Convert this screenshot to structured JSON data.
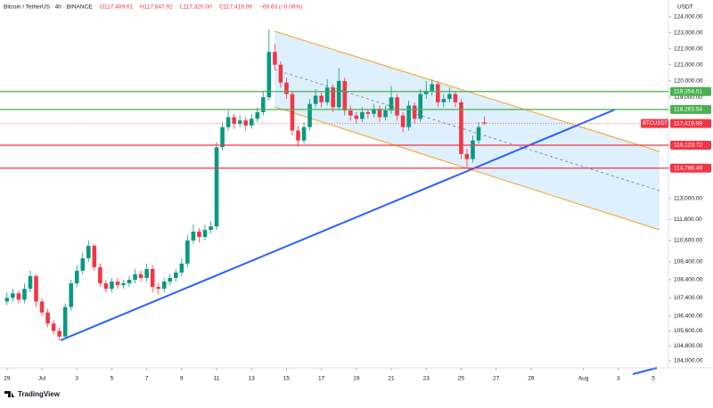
{
  "header": {
    "symbol": "Bitcoin / TetherUS · 4h · BINANCE",
    "ohlc": [
      "O117,489.61",
      "H117,847.92",
      "L117,320.00",
      "C117,419.99",
      "−69.63 (−0.06%)"
    ],
    "currency": "USDT",
    "brand": "TradingView"
  },
  "chart_data": {
    "type": "candlestick",
    "log_scale": true,
    "up_color": "#089981",
    "down_color": "#f23645",
    "xlim": [
      -1.2,
      113.6
    ],
    "ylim": [
      103620,
      124790
    ],
    "xticks": [
      {
        "value": 0,
        "label": "29"
      },
      {
        "value": 6,
        "label": "Jul"
      },
      {
        "value": 12,
        "label": "3"
      },
      {
        "value": 18,
        "label": "5"
      },
      {
        "value": 24,
        "label": "7"
      },
      {
        "value": 30,
        "label": "9"
      },
      {
        "value": 36,
        "label": "11"
      },
      {
        "value": 42,
        "label": "13"
      },
      {
        "value": 48,
        "label": "15"
      },
      {
        "value": 54,
        "label": "17"
      },
      {
        "value": 60,
        "label": "19"
      },
      {
        "value": 66,
        "label": "21"
      },
      {
        "value": 72,
        "label": "23"
      },
      {
        "value": 78,
        "label": "25"
      },
      {
        "value": 84,
        "label": "27"
      },
      {
        "value": 90,
        "label": "29"
      },
      {
        "value": 99,
        "label": "Aug"
      },
      {
        "value": 105,
        "label": "3"
      },
      {
        "value": 111,
        "label": "5"
      }
    ],
    "yticks": [
      {
        "value": 124000,
        "label": "124,000.00"
      },
      {
        "value": 123000,
        "label": "123,000.00"
      },
      {
        "value": 122000,
        "label": "122,000.00"
      },
      {
        "value": 121000,
        "label": "121,000.00"
      },
      {
        "value": 120000,
        "label": "120,000.00"
      },
      {
        "value": 119000,
        "label": "119,000.00"
      },
      {
        "value": 113000,
        "label": "113,000.00"
      },
      {
        "value": 111800,
        "label": "111,800.00"
      },
      {
        "value": 110600,
        "label": "110,600.00"
      },
      {
        "value": 109400,
        "label": "109,400.00"
      },
      {
        "value": 108400,
        "label": "108,400.00"
      },
      {
        "value": 107400,
        "label": "107,400.00"
      },
      {
        "value": 106400,
        "label": "106,400.00"
      },
      {
        "value": 105600,
        "label": "105,600.00"
      },
      {
        "value": 104800,
        "label": "104,800.00"
      },
      {
        "value": 104000,
        "label": "104,000.00"
      }
    ],
    "levels": [
      {
        "value": 119354.51,
        "label": "119,354.51",
        "color": "#4caf50"
      },
      {
        "value": 118263.54,
        "label": "118,263.54",
        "color": "#4caf50"
      },
      {
        "value": 116123.72,
        "label": "116,123.72",
        "color": "#f23645"
      },
      {
        "value": 114766.49,
        "label": "114,766.49",
        "color": "#f23645"
      }
    ],
    "price_tag": {
      "name": "BTCUSDT",
      "value": 117419.99,
      "label": "117,419.99",
      "color": "#f23645"
    },
    "open": [
      107200,
      107400,
      107650,
      107300,
      107900,
      108600,
      107200,
      106600,
      106000,
      105600,
      105300,
      106900,
      108200,
      108900,
      109600,
      110300,
      109100,
      108200,
      107900,
      108300,
      108100,
      108200,
      108400,
      108700,
      108500,
      109000,
      108000,
      107900,
      108300,
      108500,
      108800,
      109300,
      110600,
      111100,
      110800,
      111200,
      111400,
      116000,
      117200,
      117800,
      117400,
      117600,
      117300,
      117700,
      118100,
      119000,
      121800,
      121000,
      119900,
      119200,
      117000,
      116400,
      117200,
      118600,
      119100,
      118700,
      119600,
      118400,
      120000,
      118200,
      117900,
      117700,
      118100,
      118000,
      118300,
      117800,
      118200,
      119000,
      117900,
      117200,
      118500,
      117700,
      119200,
      119400,
      119800,
      118700,
      118900,
      119200,
      118700,
      115600,
      115300,
      116400,
      117489.61
    ],
    "high": [
      107700,
      107900,
      107800,
      108200,
      108900,
      108700,
      107400,
      106800,
      106200,
      105800,
      107100,
      108400,
      109200,
      109900,
      110600,
      110400,
      109300,
      108400,
      108500,
      108500,
      108400,
      108600,
      109000,
      108900,
      109300,
      109200,
      108200,
      108500,
      108700,
      109000,
      109600,
      110900,
      111500,
      111300,
      111500,
      111700,
      116300,
      117500,
      118200,
      118000,
      117900,
      117800,
      118000,
      118400,
      119400,
      123200,
      122300,
      121200,
      120200,
      119400,
      117300,
      117500,
      118900,
      119500,
      119300,
      120100,
      119800,
      120800,
      120200,
      118500,
      118100,
      118400,
      118300,
      118600,
      118500,
      118500,
      119700,
      119200,
      118100,
      118800,
      118700,
      119500,
      120000,
      120100,
      120000,
      119200,
      119600,
      119400,
      118900,
      115900,
      116700,
      117500,
      117847.92
    ],
    "low": [
      107000,
      107200,
      107100,
      107100,
      107700,
      106900,
      106400,
      105800,
      105400,
      105100,
      105200,
      106700,
      108000,
      108700,
      109400,
      108900,
      108000,
      107700,
      107700,
      107900,
      107900,
      108000,
      108200,
      108300,
      108300,
      107700,
      107600,
      107700,
      108100,
      108300,
      108600,
      109100,
      110400,
      110500,
      110600,
      111000,
      111200,
      115800,
      117000,
      117100,
      117200,
      117000,
      117100,
      117500,
      117900,
      118800,
      120700,
      119600,
      118900,
      116700,
      116000,
      116200,
      117000,
      118400,
      118400,
      118500,
      118100,
      118200,
      117900,
      117600,
      117400,
      117500,
      117700,
      117800,
      117500,
      117600,
      118000,
      117600,
      116900,
      117000,
      117400,
      117500,
      118900,
      119100,
      118400,
      118400,
      118700,
      118400,
      115300,
      114800,
      115100,
      116200,
      117320
    ],
    "close": [
      107400,
      107650,
      107300,
      107900,
      108600,
      107200,
      106600,
      106000,
      105600,
      105300,
      106900,
      108200,
      108900,
      109600,
      110300,
      109100,
      108200,
      107900,
      108300,
      108100,
      108200,
      108400,
      108700,
      108500,
      109000,
      108000,
      107900,
      108300,
      108500,
      108800,
      109300,
      110600,
      111100,
      110800,
      111200,
      111400,
      116000,
      117200,
      117800,
      117400,
      117600,
      117300,
      117700,
      118100,
      119000,
      121800,
      121000,
      119900,
      119200,
      117000,
      116400,
      117200,
      118600,
      119100,
      118700,
      119600,
      118400,
      120000,
      118200,
      117900,
      117700,
      118100,
      118000,
      118300,
      117800,
      118200,
      119000,
      117900,
      117200,
      118500,
      117700,
      119200,
      119400,
      119800,
      118700,
      118900,
      119200,
      118700,
      115600,
      115300,
      116400,
      117200,
      117419.99
    ]
  }
}
